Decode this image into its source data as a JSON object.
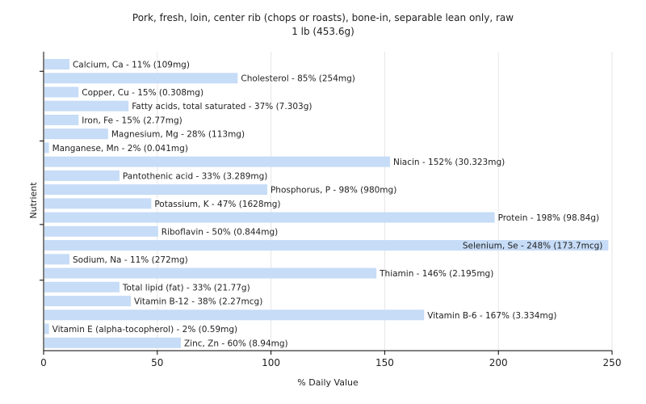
{
  "chart_data": {
    "type": "bar",
    "orientation": "horizontal",
    "title": "Pork, fresh, loin, center rib (chops or roasts), bone-in, separable lean only, raw",
    "subtitle": "1 lb (453.6g)",
    "xlabel": "% Daily Value",
    "ylabel": "Nutrient",
    "xlim": [
      0,
      250
    ],
    "xticks": [
      0,
      50,
      100,
      150,
      200,
      250
    ],
    "grid": true,
    "bar_color": "#c6dcf7",
    "categories": [
      "Calcium, Ca",
      "Cholesterol",
      "Copper, Cu",
      "Fatty acids, total saturated",
      "Iron, Fe",
      "Magnesium, Mg",
      "Manganese, Mn",
      "Niacin",
      "Pantothenic acid",
      "Phosphorus, P",
      "Potassium, K",
      "Protein",
      "Riboflavin",
      "Selenium, Se",
      "Sodium, Na",
      "Thiamin",
      "Total lipid (fat)",
      "Vitamin B-12",
      "Vitamin B-6",
      "Vitamin E (alpha-tocopherol)",
      "Zinc, Zn"
    ],
    "values": [
      11,
      85,
      15,
      37,
      15,
      28,
      2,
      152,
      33,
      98,
      47,
      198,
      50,
      248,
      11,
      146,
      33,
      38,
      167,
      2,
      60
    ],
    "labels": [
      "Calcium, Ca - 11% (109mg)",
      "Cholesterol - 85% (254mg)",
      "Copper, Cu - 15% (0.308mg)",
      "Fatty acids, total saturated - 37% (7.303g)",
      "Iron, Fe - 15% (2.77mg)",
      "Magnesium, Mg - 28% (113mg)",
      "Manganese, Mn - 2% (0.041mg)",
      "Niacin - 152% (30.323mg)",
      "Pantothenic acid - 33% (3.289mg)",
      "Phosphorus, P - 98% (980mg)",
      "Potassium, K - 47% (1628mg)",
      "Protein - 198% (98.84g)",
      "Riboflavin - 50% (0.844mg)",
      "Selenium, Se - 248% (173.7mcg)",
      "Sodium, Na - 11% (272mg)",
      "Thiamin - 146% (2.195mg)",
      "Total lipid (fat) - 33% (21.77g)",
      "Vitamin B-12 - 38% (2.27mcg)",
      "Vitamin B-6 - 167% (3.334mg)",
      "Vitamin E (alpha-tocopherol) - 2% (0.59mg)",
      "Zinc, Zn - 60% (8.94mg)"
    ]
  }
}
